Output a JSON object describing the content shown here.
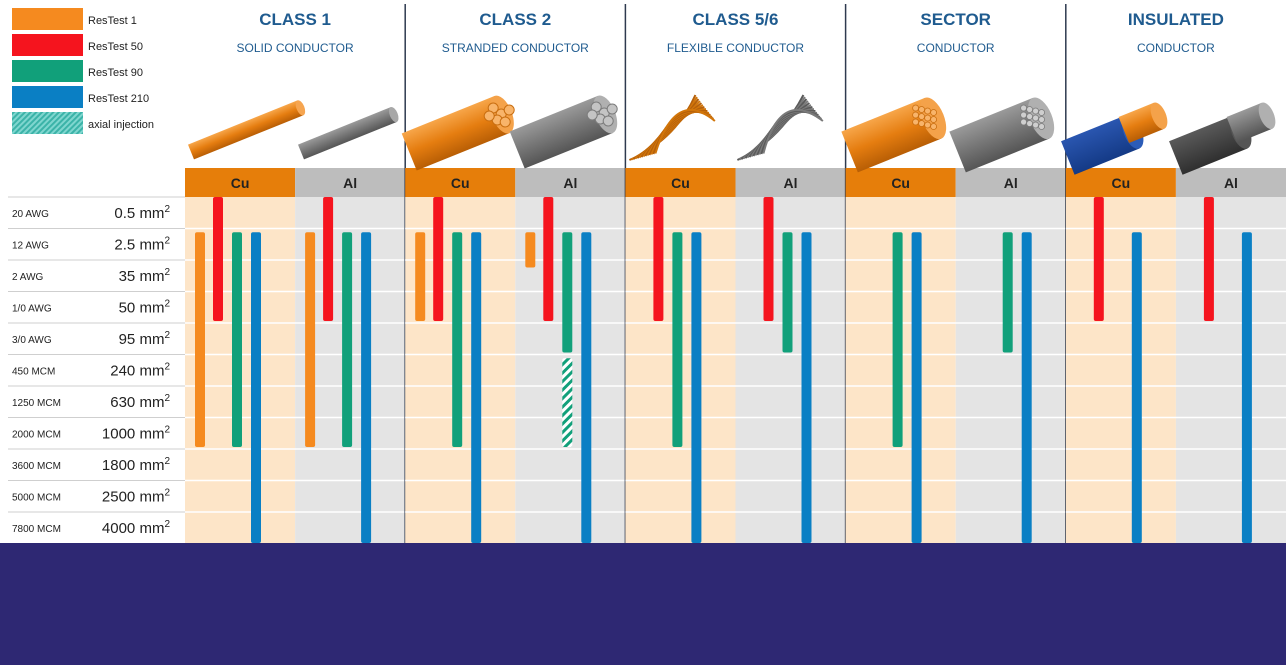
{
  "colors": {
    "restest1": "#f58a1f",
    "restest50": "#f5141e",
    "restest90": "#11a07a",
    "restest210": "#0a7fc4",
    "axial": "#11a07a",
    "cu_header": "#e67e0a",
    "al_header": "#bdbdbd",
    "cu_body": "#fde5c8",
    "al_body": "#e4e4e4",
    "title": "#1f5b8f",
    "footer": "#2e2873"
  },
  "legend": [
    {
      "key": "restest1",
      "label": "ResTest 1",
      "icon": "orange-swatch"
    },
    {
      "key": "restest50",
      "label": "ResTest 50",
      "icon": "red-swatch"
    },
    {
      "key": "restest90",
      "label": "ResTest 90",
      "icon": "green-swatch"
    },
    {
      "key": "restest210",
      "label": "ResTest 210",
      "icon": "blue-swatch"
    },
    {
      "key": "axial",
      "label": "axial injection",
      "icon": "hatched-swatch"
    }
  ],
  "chart_data": {
    "type": "bar",
    "orientation": "range-columns",
    "title": "",
    "xlabel": "",
    "ylabel": "",
    "rows": [
      {
        "awg": "20 AWG",
        "mm2": "0.5 mm"
      },
      {
        "awg": "12 AWG",
        "mm2": "2.5 mm"
      },
      {
        "awg": "2 AWG",
        "mm2": "35 mm"
      },
      {
        "awg": "1/0 AWG",
        "mm2": "50 mm"
      },
      {
        "awg": "3/0 AWG",
        "mm2": "95 mm"
      },
      {
        "awg": "450 MCM",
        "mm2": "240 mm"
      },
      {
        "awg": "1250 MCM",
        "mm2": "630 mm"
      },
      {
        "awg": "2000 MCM",
        "mm2": "1000 mm"
      },
      {
        "awg": "3600 MCM",
        "mm2": "1800 mm"
      },
      {
        "awg": "5000 MCM",
        "mm2": "2500 mm"
      },
      {
        "awg": "7800 MCM",
        "mm2": "4000 mm"
      }
    ],
    "unit_superscript": "2",
    "classes": [
      {
        "title": "CLASS 1",
        "subtitle": "SOLID CONDUCTOR",
        "image": "solid-conductor-image",
        "columns": [
          {
            "label": "Cu",
            "material": "cu",
            "bars": [
              {
                "series": "restest1",
                "from": 1,
                "to": 8
              },
              {
                "series": "restest50",
                "from": 0,
                "to": 4
              },
              {
                "series": "restest90",
                "from": 1,
                "to": 8
              },
              {
                "series": "restest210",
                "from": 1,
                "to": 11
              }
            ]
          },
          {
            "label": "Al",
            "material": "al",
            "bars": [
              {
                "series": "restest1",
                "from": 1,
                "to": 8
              },
              {
                "series": "restest50",
                "from": 0,
                "to": 4
              },
              {
                "series": "restest90",
                "from": 1,
                "to": 8
              },
              {
                "series": "restest210",
                "from": 1,
                "to": 11
              }
            ]
          }
        ]
      },
      {
        "title": "CLASS 2",
        "subtitle": "STRANDED CONDUCTOR",
        "image": "stranded-conductor-image",
        "columns": [
          {
            "label": "Cu",
            "material": "cu",
            "bars": [
              {
                "series": "restest1",
                "from": 1,
                "to": 4
              },
              {
                "series": "restest50",
                "from": 0,
                "to": 4
              },
              {
                "series": "restest90",
                "from": 1,
                "to": 8
              },
              {
                "series": "restest210",
                "from": 1,
                "to": 11
              }
            ]
          },
          {
            "label": "Al",
            "material": "al",
            "bars": [
              {
                "series": "restest1",
                "from": 1,
                "to": 2.3
              },
              {
                "series": "restest50",
                "from": 0,
                "to": 4
              },
              {
                "series": "restest90",
                "from": 1,
                "to": 5
              },
              {
                "series": "axial",
                "from": 5,
                "to": 8
              },
              {
                "series": "restest210",
                "from": 1,
                "to": 11
              }
            ]
          }
        ]
      },
      {
        "title": "CLASS 5/6",
        "subtitle": "FLEXIBLE CONDUCTOR",
        "image": "flexible-conductor-image",
        "columns": [
          {
            "label": "Cu",
            "material": "cu",
            "bars": [
              {
                "series": "restest50",
                "from": 0,
                "to": 4
              },
              {
                "series": "restest90",
                "from": 1,
                "to": 8
              },
              {
                "series": "restest210",
                "from": 1,
                "to": 11
              }
            ]
          },
          {
            "label": "Al",
            "material": "al",
            "bars": [
              {
                "series": "restest50",
                "from": 0,
                "to": 4
              },
              {
                "series": "restest90",
                "from": 1,
                "to": 5
              },
              {
                "series": "restest210",
                "from": 1,
                "to": 11
              }
            ]
          }
        ]
      },
      {
        "title": "SECTOR",
        "subtitle": "CONDUCTOR",
        "image": "sector-conductor-image",
        "columns": [
          {
            "label": "Cu",
            "material": "cu",
            "bars": [
              {
                "series": "restest90",
                "from": 1,
                "to": 8
              },
              {
                "series": "restest210",
                "from": 1,
                "to": 11
              }
            ]
          },
          {
            "label": "Al",
            "material": "al",
            "bars": [
              {
                "series": "restest90",
                "from": 1,
                "to": 5
              },
              {
                "series": "restest210",
                "from": 1,
                "to": 11
              }
            ]
          }
        ]
      },
      {
        "title": "INSULATED",
        "subtitle": "CONDUCTOR",
        "image": "insulated-conductor-image",
        "columns": [
          {
            "label": "Cu",
            "material": "cu",
            "bars": [
              {
                "series": "restest50",
                "from": 0,
                "to": 4
              },
              {
                "series": "restest210",
                "from": 1,
                "to": 11
              }
            ]
          },
          {
            "label": "Al",
            "material": "al",
            "bars": [
              {
                "series": "restest50",
                "from": 0,
                "to": 4
              },
              {
                "series": "restest210",
                "from": 1,
                "to": 11
              }
            ]
          }
        ]
      }
    ]
  }
}
